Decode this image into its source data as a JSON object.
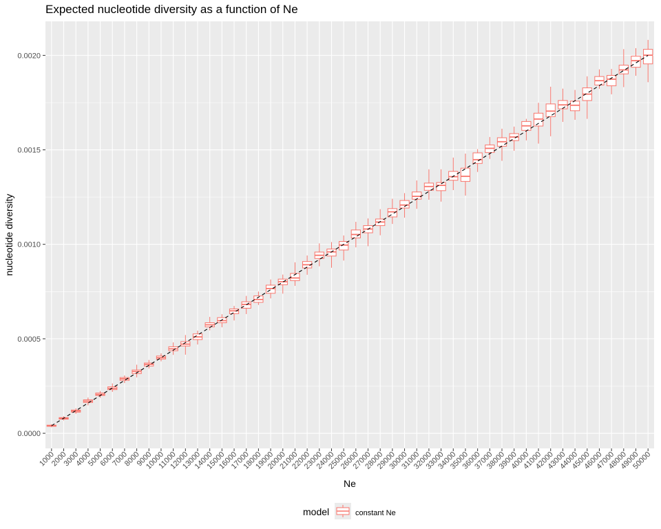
{
  "chart_data": {
    "type": "boxplot",
    "title": "Expected nucleotide diversity as a function of Ne",
    "xlabel": "Ne",
    "ylabel": "nucleotide diversity",
    "ylim": [
      -8e-05,
      0.00218
    ],
    "y_ticks": [
      0.0,
      0.0005,
      0.001,
      0.0015,
      0.002
    ],
    "y_tick_labels": [
      "0.0000",
      "0.0005",
      "0.0010",
      "0.0015",
      "0.0020"
    ],
    "categories": [
      "1000",
      "2000",
      "3000",
      "4000",
      "5000",
      "6000",
      "7000",
      "8000",
      "9000",
      "10000",
      "11000",
      "12000",
      "13000",
      "14000",
      "15000",
      "16000",
      "17000",
      "18000",
      "19000",
      "20000",
      "21000",
      "22000",
      "23000",
      "24000",
      "25000",
      "26000",
      "27000",
      "28000",
      "29000",
      "30000",
      "31000",
      "32000",
      "33000",
      "34000",
      "35000",
      "36000",
      "37000",
      "38000",
      "39000",
      "40000",
      "41000",
      "42000",
      "43000",
      "44000",
      "45000",
      "46000",
      "47000",
      "48000",
      "49000",
      "50000"
    ],
    "series": [
      {
        "name": "constant Ne",
        "color": "#f8766d",
        "boxes": [
          {
            "min": 3.2e-05,
            "q1": 3.7e-05,
            "median": 4e-05,
            "q3": 4.3e-05,
            "max": 4.8e-05
          },
          {
            "min": 6.8e-05,
            "q1": 7.5e-05,
            "median": 7.9e-05,
            "q3": 8.3e-05,
            "max": 9e-05
          },
          {
            "min": 0.000103,
            "q1": 0.000112,
            "median": 0.000118,
            "q3": 0.000123,
            "max": 0.000132
          },
          {
            "min": 0.000148,
            "q1": 0.000163,
            "median": 0.00017,
            "q3": 0.000177,
            "max": 0.000189
          },
          {
            "min": 0.000188,
            "q1": 0.0002,
            "median": 0.000206,
            "q3": 0.000213,
            "max": 0.000224
          },
          {
            "min": 0.000219,
            "q1": 0.000231,
            "median": 0.000238,
            "q3": 0.000246,
            "max": 0.000264
          },
          {
            "min": 0.000266,
            "q1": 0.00028,
            "median": 0.000288,
            "q3": 0.000295,
            "max": 0.000306
          },
          {
            "min": 0.000296,
            "q1": 0.000316,
            "median": 0.000327,
            "q3": 0.000335,
            "max": 0.000363
          },
          {
            "min": 0.000343,
            "q1": 0.000356,
            "median": 0.000365,
            "q3": 0.000372,
            "max": 0.000388
          },
          {
            "min": 0.000381,
            "q1": 0.000393,
            "median": 0.0004,
            "q3": 0.000409,
            "max": 0.000423
          },
          {
            "min": 0.000415,
            "q1": 0.000437,
            "median": 0.000447,
            "q3": 0.000458,
            "max": 0.000481
          },
          {
            "min": 0.000416,
            "q1": 0.000462,
            "median": 0.000472,
            "q3": 0.000485,
            "max": 0.00052
          },
          {
            "min": 0.00047,
            "q1": 0.000496,
            "median": 0.00051,
            "q3": 0.000526,
            "max": 0.000543
          },
          {
            "min": 0.000545,
            "q1": 0.000563,
            "median": 0.000574,
            "q3": 0.000585,
            "max": 0.000616
          },
          {
            "min": 0.000561,
            "q1": 0.000585,
            "median": 0.000596,
            "q3": 0.000612,
            "max": 0.00063
          },
          {
            "min": 0.000597,
            "q1": 0.000633,
            "median": 0.000648,
            "q3": 0.000658,
            "max": 0.000674
          },
          {
            "min": 0.000631,
            "q1": 0.000662,
            "median": 0.000682,
            "q3": 0.000696,
            "max": 0.000727
          },
          {
            "min": 0.000679,
            "q1": 0.000693,
            "median": 0.000708,
            "q3": 0.000727,
            "max": 0.00075
          },
          {
            "min": 0.000714,
            "q1": 0.000741,
            "median": 0.000766,
            "q3": 0.000784,
            "max": 0.000814
          },
          {
            "min": 0.000739,
            "q1": 0.000786,
            "median": 0.000802,
            "q3": 0.000816,
            "max": 0.00084
          },
          {
            "min": 0.00078,
            "q1": 0.000808,
            "median": 0.000822,
            "q3": 0.000846,
            "max": 0.000905
          },
          {
            "min": 0.000839,
            "q1": 0.000875,
            "median": 0.000892,
            "q3": 0.000909,
            "max": 0.000941
          },
          {
            "min": 0.000884,
            "q1": 0.000925,
            "median": 0.000942,
            "q3": 0.000959,
            "max": 0.001005
          },
          {
            "min": 0.000876,
            "q1": 0.000938,
            "median": 0.00096,
            "q3": 0.000975,
            "max": 0.001012
          },
          {
            "min": 0.000914,
            "q1": 0.00097,
            "median": 0.000996,
            "q3": 0.001015,
            "max": 0.001047
          },
          {
            "min": 0.000984,
            "q1": 0.001034,
            "median": 0.001052,
            "q3": 0.001076,
            "max": 0.001119
          },
          {
            "min": 0.00099,
            "q1": 0.001061,
            "median": 0.001081,
            "q3": 0.001099,
            "max": 0.001137
          },
          {
            "min": 0.001048,
            "q1": 0.001099,
            "median": 0.001118,
            "q3": 0.001134,
            "max": 0.001186
          },
          {
            "min": 0.001108,
            "q1": 0.001145,
            "median": 0.001172,
            "q3": 0.001189,
            "max": 0.001241
          },
          {
            "min": 0.001141,
            "q1": 0.001192,
            "median": 0.001208,
            "q3": 0.001232,
            "max": 0.001271
          },
          {
            "min": 0.001188,
            "q1": 0.001239,
            "median": 0.001254,
            "q3": 0.001277,
            "max": 0.001338
          },
          {
            "min": 0.001236,
            "q1": 0.001286,
            "median": 0.001306,
            "q3": 0.001324,
            "max": 0.001397
          },
          {
            "min": 0.001226,
            "q1": 0.001284,
            "median": 0.001312,
            "q3": 0.001327,
            "max": 0.001397
          },
          {
            "min": 0.001287,
            "q1": 0.001339,
            "median": 0.001358,
            "q3": 0.001386,
            "max": 0.001459
          },
          {
            "min": 0.001258,
            "q1": 0.001333,
            "median": 0.00136,
            "q3": 0.001403,
            "max": 0.00148
          },
          {
            "min": 0.001383,
            "q1": 0.001428,
            "median": 0.001448,
            "q3": 0.001484,
            "max": 0.001504
          },
          {
            "min": 0.001452,
            "q1": 0.001486,
            "median": 0.001508,
            "q3": 0.001526,
            "max": 0.001568
          },
          {
            "min": 0.001442,
            "q1": 0.001519,
            "median": 0.001543,
            "q3": 0.001564,
            "max": 0.001612
          },
          {
            "min": 0.001495,
            "q1": 0.001549,
            "median": 0.001568,
            "q3": 0.001586,
            "max": 0.001623
          },
          {
            "min": 0.00155,
            "q1": 0.001603,
            "median": 0.001627,
            "q3": 0.00165,
            "max": 0.001664
          },
          {
            "min": 0.001533,
            "q1": 0.001626,
            "median": 0.001663,
            "q3": 0.001694,
            "max": 0.001749
          },
          {
            "min": 0.001572,
            "q1": 0.001676,
            "median": 0.001705,
            "q3": 0.001743,
            "max": 0.001834
          },
          {
            "min": 0.001648,
            "q1": 0.001717,
            "median": 0.001738,
            "q3": 0.001761,
            "max": 0.001824
          },
          {
            "min": 0.001659,
            "q1": 0.001707,
            "median": 0.001736,
            "q3": 0.001758,
            "max": 0.001817
          },
          {
            "min": 0.001664,
            "q1": 0.001761,
            "median": 0.001795,
            "q3": 0.001828,
            "max": 0.001889
          },
          {
            "min": 0.001823,
            "q1": 0.001843,
            "median": 0.001866,
            "q3": 0.001888,
            "max": 0.001926
          },
          {
            "min": 0.001794,
            "q1": 0.001839,
            "median": 0.001874,
            "q3": 0.001894,
            "max": 0.001928
          },
          {
            "min": 0.001832,
            "q1": 0.001902,
            "median": 0.001923,
            "q3": 0.001948,
            "max": 0.002033
          },
          {
            "min": 0.001892,
            "q1": 0.001937,
            "median": 0.001972,
            "q3": 0.001996,
            "max": 0.002038
          },
          {
            "min": 0.001858,
            "q1": 0.001955,
            "median": 0.002001,
            "q3": 0.002032,
            "max": 0.002082
          }
        ]
      }
    ],
    "reference_line": {
      "style": "dashed",
      "color": "#000000",
      "x": [
        1000,
        50000
      ],
      "y": [
        4e-05,
        0.002
      ]
    },
    "grid": true,
    "panel_background": "#ebebeb",
    "gridline_color": "#ffffff",
    "legend": {
      "position": "bottom",
      "title": "model",
      "entries": [
        "constant Ne"
      ]
    }
  }
}
